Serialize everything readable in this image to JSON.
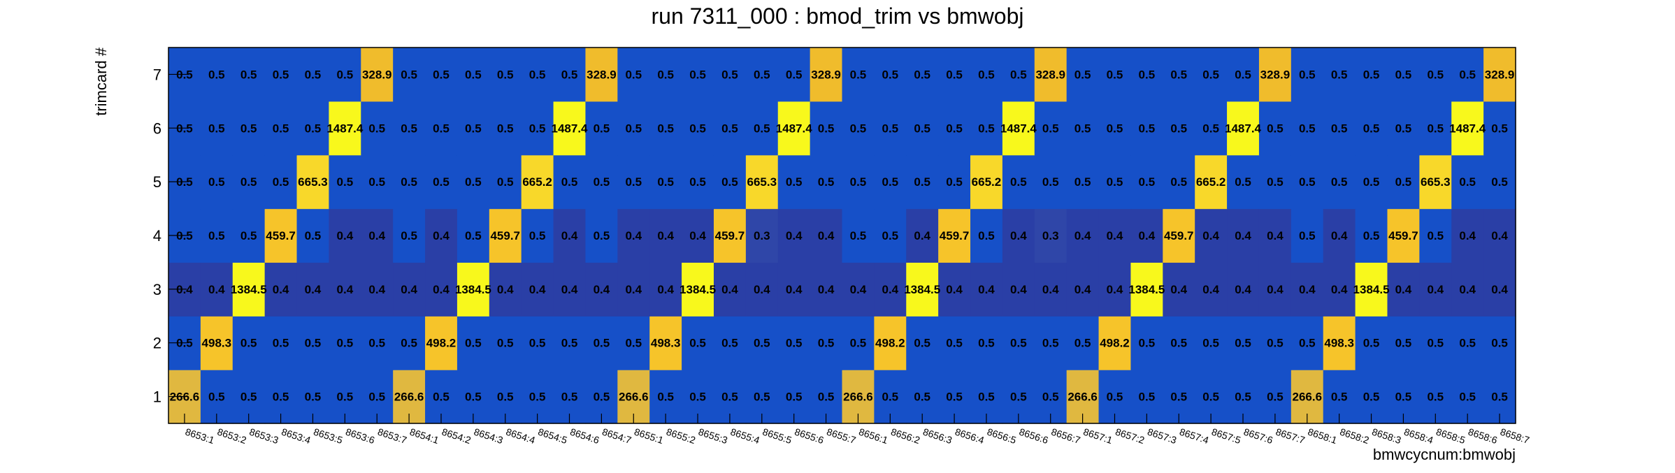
{
  "chart_data": {
    "type": "heatmap",
    "title": "run 7311_000 : bmod_trim vs bmwobj",
    "xlabel": "bmwcycnum:bmwobj",
    "ylabel": "trimcard #",
    "x_categories": [
      "8653:1",
      "8653:2",
      "8653:3",
      "8653:4",
      "8653:5",
      "8653:6",
      "8653:7",
      "8654:1",
      "8654:2",
      "8654:3",
      "8654:4",
      "8654:5",
      "8654:6",
      "8654:7",
      "8655:1",
      "8655:2",
      "8655:3",
      "8655:4",
      "8655:5",
      "8655:6",
      "8655:7",
      "8656:1",
      "8656:2",
      "8656:3",
      "8656:4",
      "8656:5",
      "8656:6",
      "8656:7",
      "8657:1",
      "8657:2",
      "8657:3",
      "8657:4",
      "8657:5",
      "8657:6",
      "8657:7",
      "8658:1",
      "8658:2",
      "8658:3",
      "8658:4",
      "8658:5",
      "8658:6",
      "8658:7"
    ],
    "y_categories": [
      "1",
      "2",
      "3",
      "4",
      "5",
      "6",
      "7"
    ],
    "rows": [
      {
        "y": "1",
        "values": [
          "266.6",
          "0.5",
          "0.5",
          "0.5",
          "0.5",
          "0.5",
          "0.5",
          "266.6",
          "0.5",
          "0.5",
          "0.5",
          "0.5",
          "0.5",
          "0.5",
          "266.6",
          "0.5",
          "0.5",
          "0.5",
          "0.5",
          "0.5",
          "0.5",
          "266.6",
          "0.5",
          "0.5",
          "0.5",
          "0.5",
          "0.5",
          "0.5",
          "266.6",
          "0.5",
          "0.5",
          "0.5",
          "0.5",
          "0.5",
          "0.5",
          "266.6",
          "0.5",
          "0.5",
          "0.5",
          "0.5",
          "0.5",
          "0.5"
        ]
      },
      {
        "y": "2",
        "values": [
          "0.5",
          "498.3",
          "0.5",
          "0.5",
          "0.5",
          "0.5",
          "0.5",
          "0.5",
          "498.2",
          "0.5",
          "0.5",
          "0.5",
          "0.5",
          "0.5",
          "0.5",
          "498.3",
          "0.5",
          "0.5",
          "0.5",
          "0.5",
          "0.5",
          "0.5",
          "498.2",
          "0.5",
          "0.5",
          "0.5",
          "0.5",
          "0.5",
          "0.5",
          "498.2",
          "0.5",
          "0.5",
          "0.5",
          "0.5",
          "0.5",
          "0.5",
          "498.3",
          "0.5",
          "0.5",
          "0.5",
          "0.5",
          "0.5"
        ]
      },
      {
        "y": "3",
        "values": [
          "0.4",
          "0.4",
          "1384.5",
          "0.4",
          "0.4",
          "0.4",
          "0.4",
          "0.4",
          "0.4",
          "1384.5",
          "0.4",
          "0.4",
          "0.4",
          "0.4",
          "0.4",
          "0.4",
          "1384.5",
          "0.4",
          "0.4",
          "0.4",
          "0.4",
          "0.4",
          "0.4",
          "1384.5",
          "0.4",
          "0.4",
          "0.4",
          "0.4",
          "0.4",
          "0.4",
          "1384.5",
          "0.4",
          "0.4",
          "0.4",
          "0.4",
          "0.4",
          "0.4",
          "1384.5",
          "0.4",
          "0.4",
          "0.4",
          "0.4"
        ]
      },
      {
        "y": "4",
        "values": [
          "0.5",
          "0.5",
          "0.5",
          "459.7",
          "0.5",
          "0.4",
          "0.4",
          "0.5",
          "0.4",
          "0.5",
          "459.7",
          "0.5",
          "0.4",
          "0.5",
          "0.4",
          "0.4",
          "0.4",
          "459.7",
          "0.3",
          "0.4",
          "0.4",
          "0.5",
          "0.5",
          "0.4",
          "459.7",
          "0.5",
          "0.4",
          "0.3",
          "0.4",
          "0.4",
          "0.4",
          "459.7",
          "0.4",
          "0.4",
          "0.4",
          "0.5",
          "0.4",
          "0.5",
          "459.7",
          "0.5",
          "0.4",
          "0.4"
        ]
      },
      {
        "y": "5",
        "values": [
          "0.5",
          "0.5",
          "0.5",
          "0.5",
          "665.3",
          "0.5",
          "0.5",
          "0.5",
          "0.5",
          "0.5",
          "0.5",
          "665.2",
          "0.5",
          "0.5",
          "0.5",
          "0.5",
          "0.5",
          "0.5",
          "665.3",
          "0.5",
          "0.5",
          "0.5",
          "0.5",
          "0.5",
          "0.5",
          "665.2",
          "0.5",
          "0.5",
          "0.5",
          "0.5",
          "0.5",
          "0.5",
          "665.2",
          "0.5",
          "0.5",
          "0.5",
          "0.5",
          "0.5",
          "0.5",
          "665.3",
          "0.5",
          "0.5"
        ]
      },
      {
        "y": "6",
        "values": [
          "0.5",
          "0.5",
          "0.5",
          "0.5",
          "0.5",
          "1487.4",
          "0.5",
          "0.5",
          "0.5",
          "0.5",
          "0.5",
          "0.5",
          "1487.4",
          "0.5",
          "0.5",
          "0.5",
          "0.5",
          "0.5",
          "0.5",
          "1487.4",
          "0.5",
          "0.5",
          "0.5",
          "0.5",
          "0.5",
          "0.5",
          "1487.4",
          "0.5",
          "0.5",
          "0.5",
          "0.5",
          "0.5",
          "0.5",
          "1487.4",
          "0.5",
          "0.5",
          "0.5",
          "0.5",
          "0.5",
          "0.5",
          "1487.4",
          "0.5"
        ]
      },
      {
        "y": "7",
        "values": [
          "0.5",
          "0.5",
          "0.5",
          "0.5",
          "0.5",
          "0.5",
          "328.9",
          "0.5",
          "0.5",
          "0.5",
          "0.5",
          "0.5",
          "0.5",
          "328.9",
          "0.5",
          "0.5",
          "0.5",
          "0.5",
          "0.5",
          "0.5",
          "328.9",
          "0.5",
          "0.5",
          "0.5",
          "0.5",
          "0.5",
          "0.5",
          "328.9",
          "0.5",
          "0.5",
          "0.5",
          "0.5",
          "0.5",
          "0.5",
          "328.9",
          "0.5",
          "0.5",
          "0.5",
          "0.5",
          "0.5",
          "0.5",
          "328.9"
        ]
      }
    ],
    "color_scale": [
      {
        "max": 0.35,
        "color": "#2f46a8"
      },
      {
        "max": 0.45,
        "color": "#2a3fa6"
      },
      {
        "max": 1.0,
        "color": "#1650c8"
      },
      {
        "max": 300,
        "color": "#e0b840"
      },
      {
        "max": 400,
        "color": "#f0bc2c"
      },
      {
        "max": 560,
        "color": "#f6c42a"
      },
      {
        "max": 1000,
        "color": "#f8d82a"
      },
      {
        "max": 100000,
        "color": "#f8f81c"
      }
    ],
    "grid": false,
    "legend": "none"
  }
}
